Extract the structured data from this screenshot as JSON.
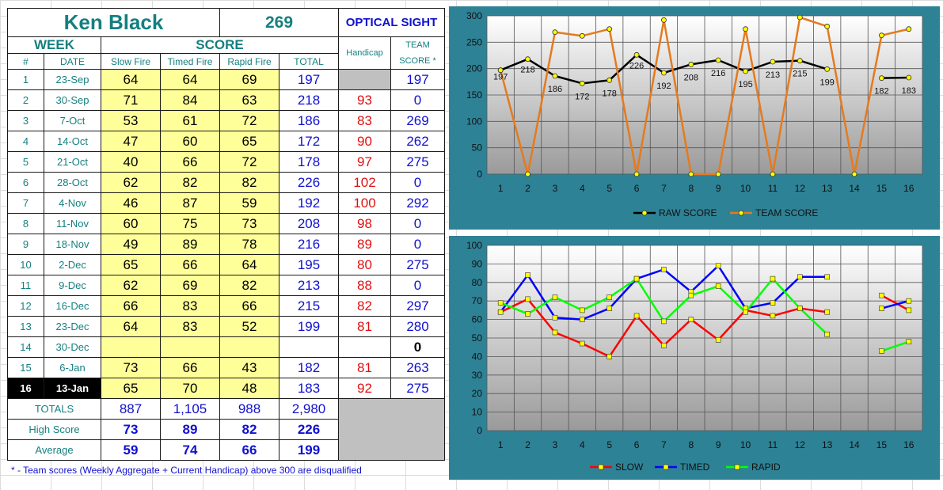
{
  "sheet": {
    "shooter_name": "Ken Black",
    "headline_score": "269",
    "sight": "OPTICAL SIGHT",
    "headers": {
      "week": "WEEK",
      "score": "SCORE",
      "handicap": "Handicap",
      "team_line1": "TEAM",
      "team_line2": "SCORE *",
      "num": "#",
      "date": "DATE",
      "slow": "Slow Fire",
      "timed": "Timed Fire",
      "rapid": "Rapid Fire",
      "total": "TOTAL"
    },
    "rows": [
      {
        "n": "1",
        "date": "23-Sep",
        "slow": "64",
        "timed": "64",
        "rapid": "69",
        "total": "197",
        "hcp": "",
        "team": "197"
      },
      {
        "n": "2",
        "date": "30-Sep",
        "slow": "71",
        "timed": "84",
        "rapid": "63",
        "total": "218",
        "hcp": "93",
        "team": "0"
      },
      {
        "n": "3",
        "date": "7-Oct",
        "slow": "53",
        "timed": "61",
        "rapid": "72",
        "total": "186",
        "hcp": "83",
        "team": "269"
      },
      {
        "n": "4",
        "date": "14-Oct",
        "slow": "47",
        "timed": "60",
        "rapid": "65",
        "total": "172",
        "hcp": "90",
        "team": "262"
      },
      {
        "n": "5",
        "date": "21-Oct",
        "slow": "40",
        "timed": "66",
        "rapid": "72",
        "total": "178",
        "hcp": "97",
        "team": "275"
      },
      {
        "n": "6",
        "date": "28-Oct",
        "slow": "62",
        "timed": "82",
        "rapid": "82",
        "total": "226",
        "hcp": "102",
        "team": "0"
      },
      {
        "n": "7",
        "date": "4-Nov",
        "slow": "46",
        "timed": "87",
        "rapid": "59",
        "total": "192",
        "hcp": "100",
        "team": "292"
      },
      {
        "n": "8",
        "date": "11-Nov",
        "slow": "60",
        "timed": "75",
        "rapid": "73",
        "total": "208",
        "hcp": "98",
        "team": "0"
      },
      {
        "n": "9",
        "date": "18-Nov",
        "slow": "49",
        "timed": "89",
        "rapid": "78",
        "total": "216",
        "hcp": "89",
        "team": "0"
      },
      {
        "n": "10",
        "date": "2-Dec",
        "slow": "65",
        "timed": "66",
        "rapid": "64",
        "total": "195",
        "hcp": "80",
        "team": "275"
      },
      {
        "n": "11",
        "date": "9-Dec",
        "slow": "62",
        "timed": "69",
        "rapid": "82",
        "total": "213",
        "hcp": "88",
        "team": "0"
      },
      {
        "n": "12",
        "date": "16-Dec",
        "slow": "66",
        "timed": "83",
        "rapid": "66",
        "total": "215",
        "hcp": "82",
        "team": "297"
      },
      {
        "n": "13",
        "date": "23-Dec",
        "slow": "64",
        "timed": "83",
        "rapid": "52",
        "total": "199",
        "hcp": "81",
        "team": "280"
      },
      {
        "n": "14",
        "date": "30-Dec",
        "slow": "",
        "timed": "",
        "rapid": "",
        "total": "",
        "hcp": "",
        "team": "0"
      },
      {
        "n": "15",
        "date": "6-Jan",
        "slow": "73",
        "timed": "66",
        "rapid": "43",
        "total": "182",
        "hcp": "81",
        "team": "263"
      },
      {
        "n": "16",
        "date": "13-Jan",
        "slow": "65",
        "timed": "70",
        "rapid": "48",
        "total": "183",
        "hcp": "92",
        "team": "275"
      }
    ],
    "totals": {
      "label": "TOTALS",
      "slow": "887",
      "timed": "1,105",
      "rapid": "988",
      "total": "2,980"
    },
    "high": {
      "label": "High Score",
      "slow": "73",
      "timed": "89",
      "rapid": "82",
      "total": "226"
    },
    "average": {
      "label": "Average",
      "slow": "59",
      "timed": "74",
      "rapid": "66",
      "total": "199"
    },
    "footnote": "* - Team scores (Weekly Aggregate + Current Handicap) above 300 are disqualified"
  },
  "colors": {
    "panel": "#2e8296",
    "raw": "#000000",
    "team": "#e57a1e",
    "slow": "#ff0000",
    "timed": "#0000ff",
    "rapid": "#00ff00",
    "marker_fill": "#ffff00"
  },
  "chart_data": [
    {
      "type": "line",
      "x": [
        1,
        2,
        3,
        4,
        5,
        6,
        7,
        8,
        9,
        10,
        11,
        12,
        13,
        14,
        15,
        16
      ],
      "ylim": [
        0,
        300
      ],
      "yticks": [
        0,
        50,
        100,
        150,
        200,
        250,
        300
      ],
      "grid": true,
      "legend": "bottom",
      "series": [
        {
          "name": "RAW SCORE",
          "values": [
            197,
            218,
            186,
            172,
            178,
            226,
            192,
            208,
            216,
            195,
            213,
            215,
            199,
            null,
            182,
            183
          ],
          "labels": [
            "197",
            "218",
            "186",
            "172",
            "178",
            "226",
            "192",
            "208",
            "216",
            "195",
            "213",
            "215",
            "199",
            "",
            "182",
            "183"
          ]
        },
        {
          "name": "TEAM SCORE",
          "values": [
            197,
            0,
            269,
            262,
            275,
            0,
            292,
            0,
            0,
            275,
            0,
            297,
            280,
            0,
            263,
            275
          ]
        }
      ]
    },
    {
      "type": "line",
      "x": [
        1,
        2,
        3,
        4,
        5,
        6,
        7,
        8,
        9,
        10,
        11,
        12,
        13,
        14,
        15,
        16
      ],
      "ylim": [
        0,
        100
      ],
      "yticks": [
        0,
        10,
        20,
        30,
        40,
        50,
        60,
        70,
        80,
        90,
        100
      ],
      "grid": true,
      "legend": "bottom",
      "series": [
        {
          "name": "SLOW",
          "values": [
            64,
            71,
            53,
            47,
            40,
            62,
            46,
            60,
            49,
            65,
            62,
            66,
            64,
            null,
            73,
            65
          ]
        },
        {
          "name": "TIMED",
          "values": [
            64,
            84,
            61,
            60,
            66,
            82,
            87,
            75,
            89,
            66,
            69,
            83,
            83,
            null,
            66,
            70
          ]
        },
        {
          "name": "RAPID",
          "values": [
            69,
            63,
            72,
            65,
            72,
            82,
            59,
            73,
            78,
            64,
            82,
            66,
            52,
            null,
            43,
            48
          ]
        }
      ]
    }
  ]
}
